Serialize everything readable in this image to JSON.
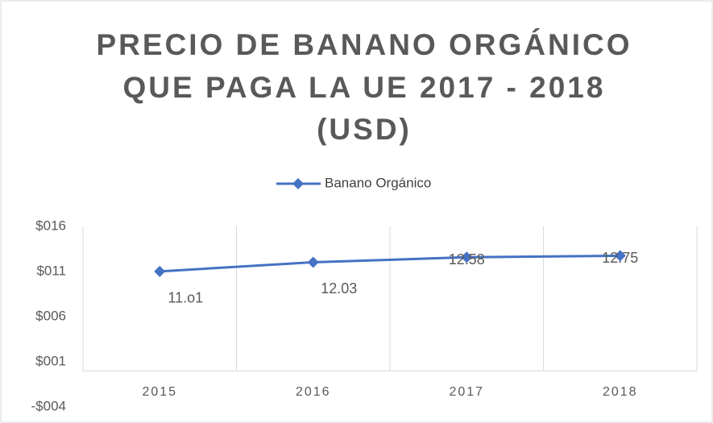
{
  "chart_data": {
    "type": "line",
    "title": [
      "PRECIO DE BANANO ORGÁNICO",
      "QUE PAGA LA UE 2017 -  2018",
      "(USD)"
    ],
    "categories": [
      "2015",
      "2016",
      "2017",
      "2018"
    ],
    "series": [
      {
        "name": "Banano Orgánico",
        "color": "#4472c4",
        "values": [
          11.01,
          12.03,
          12.58,
          12.75
        ],
        "value_labels": [
          "11.o1",
          "12.03",
          "12.58",
          "12.75"
        ]
      }
    ],
    "ylim": [
      -4,
      16
    ],
    "yticks": [
      {
        "value": 16,
        "label": "$016"
      },
      {
        "value": 11,
        "label": "$011"
      },
      {
        "value": 6,
        "label": "$006"
      },
      {
        "value": 1,
        "label": "$001"
      },
      {
        "value": -4,
        "label": "-$004"
      }
    ],
    "grid": "vertical",
    "legend": "top"
  }
}
